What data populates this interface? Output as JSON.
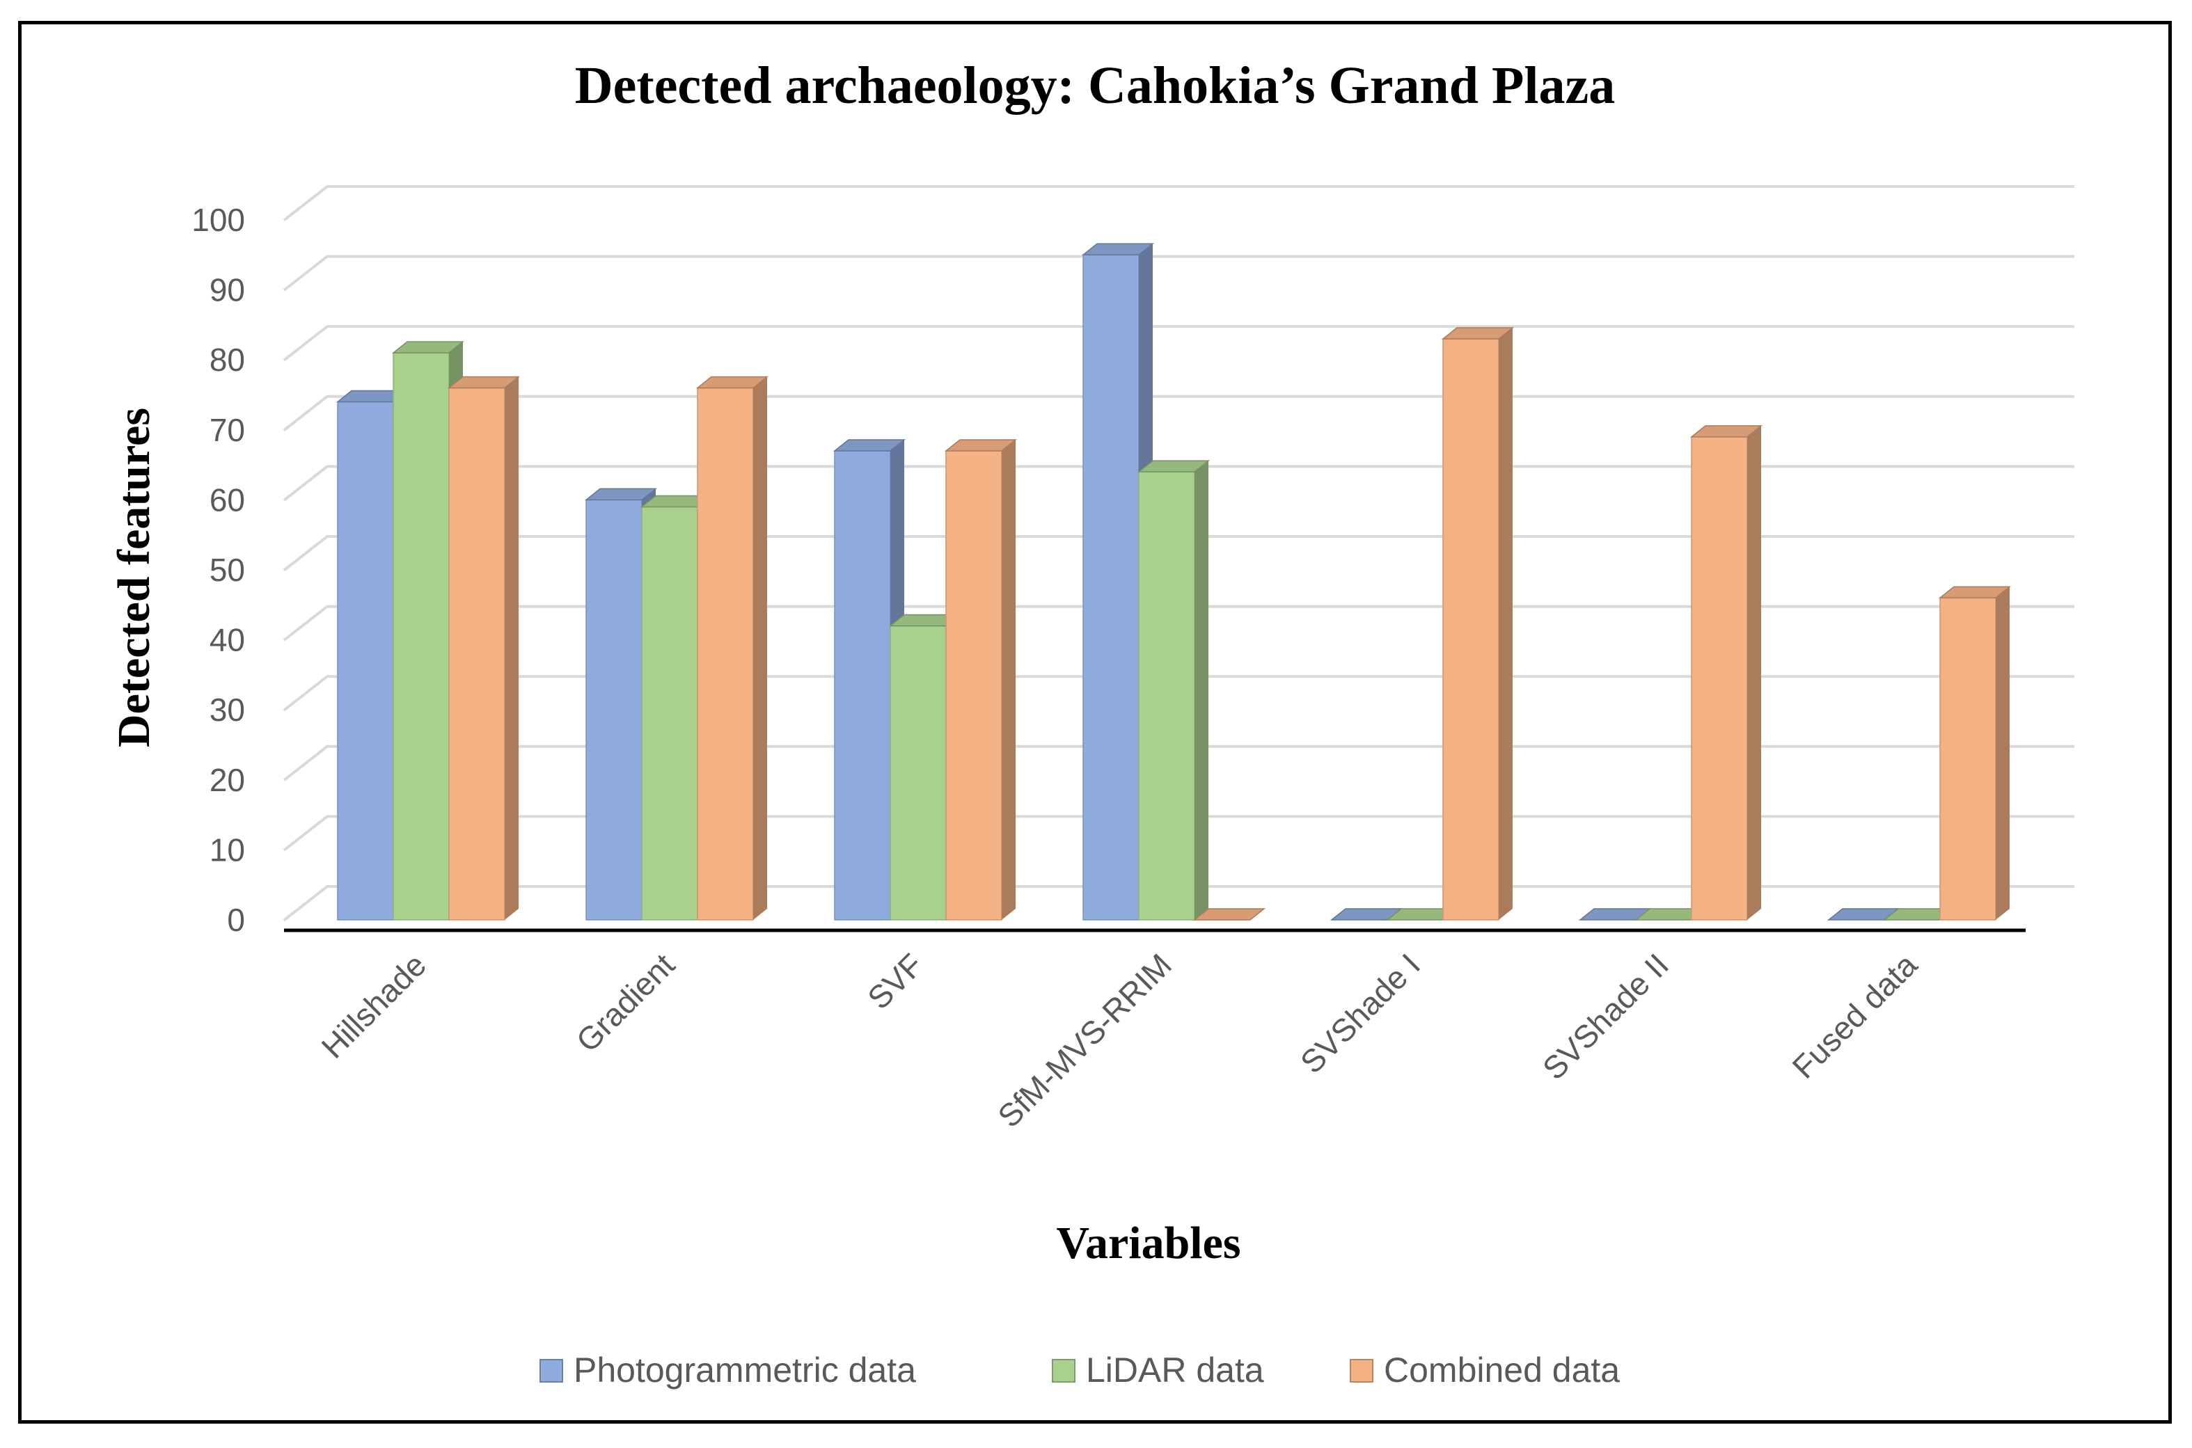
{
  "chart_data": {
    "type": "bar",
    "style": "3d-clustered-column",
    "title": "Detected archaeology: Cahokia’s Grand Plaza",
    "xlabel": "Variables",
    "ylabel": "Detected features",
    "ylim": [
      0,
      100
    ],
    "yticks": [
      "0",
      "10",
      "20",
      "30",
      "40",
      "50",
      "60",
      "70",
      "80",
      "90",
      "100"
    ],
    "grid": true,
    "legend_position": "bottom",
    "categories": [
      "Hillshade",
      "Gradient",
      "SVF",
      "SfM-MVS-RRIM",
      "SVShade I",
      "SVShade II",
      "Fused data"
    ],
    "series": [
      {
        "name": "Photogrammetric data",
        "color": "#8FAADC",
        "values": [
          74,
          60,
          67,
          95,
          0,
          0,
          0
        ]
      },
      {
        "name": "LiDAR data",
        "color": "#A9D18E",
        "values": [
          81,
          59,
          42,
          64,
          0,
          0,
          0
        ]
      },
      {
        "name": "Combined data",
        "color": "#F4B183",
        "values": [
          76,
          76,
          67,
          0,
          83,
          69,
          46
        ]
      }
    ]
  }
}
